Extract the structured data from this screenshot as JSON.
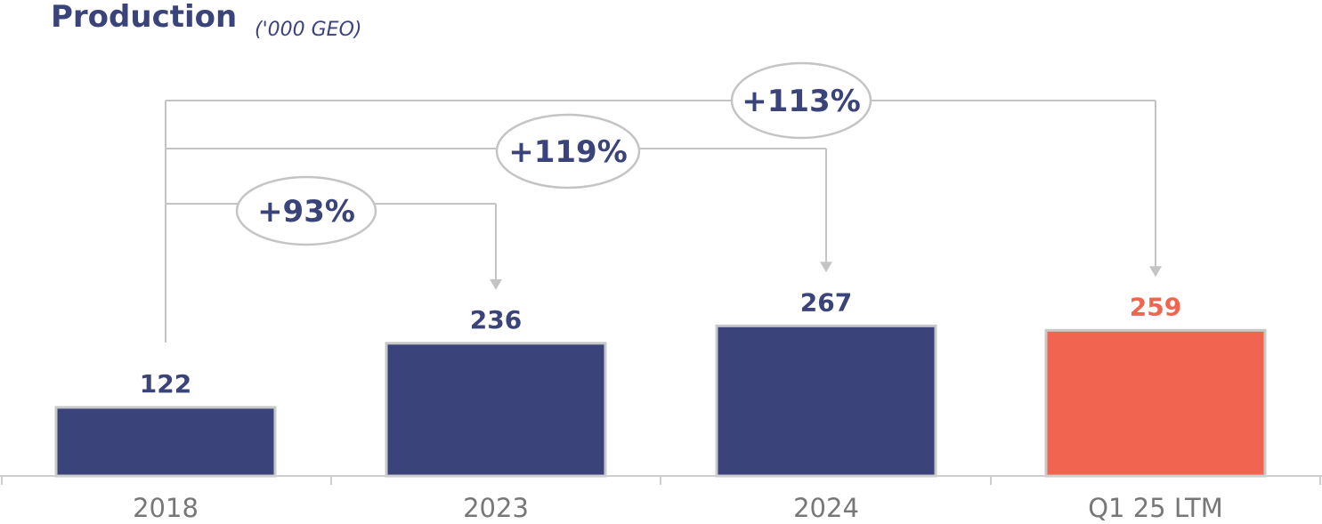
{
  "chart_data": {
    "type": "bar",
    "title": "Production",
    "subtitle": "('000 GEO)",
    "categories": [
      "2018",
      "2023",
      "2024",
      "Q1 25 LTM"
    ],
    "values": [
      122,
      236,
      267,
      259
    ],
    "value_labels": [
      "122",
      "236",
      "267",
      "259"
    ],
    "colors": [
      "#3a447a",
      "#3a447a",
      "#3a447a",
      "#f06450"
    ],
    "label_colors": [
      "#3a447a",
      "#3a447a",
      "#3a447a",
      "#f06450"
    ],
    "growth_annotations": [
      {
        "label": "+93%",
        "from": "2018",
        "to": "2023"
      },
      {
        "label": "+119%",
        "from": "2018",
        "to": "2024"
      },
      {
        "label": "+113%",
        "from": "2018",
        "to": "Q1 25 LTM"
      }
    ],
    "xlabel": "",
    "ylabel": "",
    "grid": false,
    "legend": "none"
  }
}
